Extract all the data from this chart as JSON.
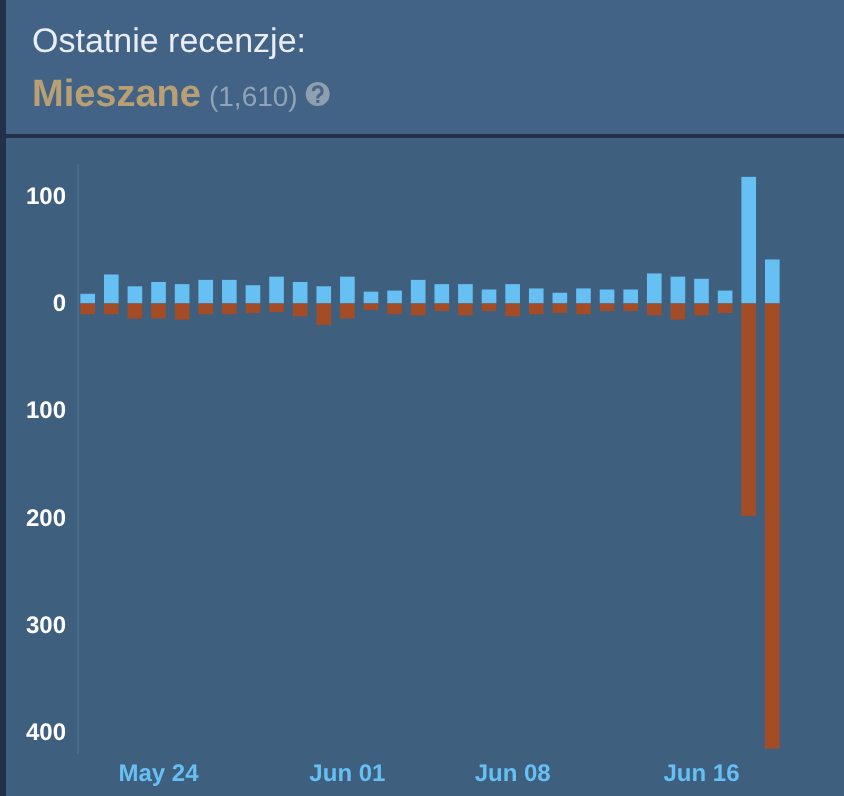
{
  "chart_data": {
    "type": "bar",
    "title": "Ostatnie recenzje:",
    "subtitle": "Mieszane",
    "annotations": [
      "(1,610)"
    ],
    "categories": [
      null,
      null,
      null,
      "May 24",
      null,
      null,
      null,
      null,
      null,
      null,
      null,
      "Jun 01",
      null,
      null,
      null,
      null,
      null,
      null,
      "Jun 08",
      null,
      null,
      null,
      null,
      null,
      null,
      null,
      "Jun 16",
      null,
      null,
      null
    ],
    "stacked": true,
    "series": [
      {
        "color": "#66c0f4",
        "values": [
          9,
          27,
          16,
          20,
          18,
          22,
          22,
          17,
          25,
          20,
          16,
          25,
          11,
          12,
          22,
          18,
          18,
          13,
          18,
          14,
          10,
          14,
          13,
          13,
          28,
          25,
          23,
          12,
          118,
          41
        ]
      },
      {
        "color": "#a34c25",
        "values": [
          -10,
          -10,
          -14,
          -14,
          -15,
          -10,
          -10,
          -9,
          -8,
          -12,
          -20,
          -14,
          -6,
          -10,
          -11,
          -7,
          -11,
          -7,
          -12,
          -10,
          -9,
          -10,
          -7,
          -7,
          -11,
          -15,
          -11,
          -9,
          -198,
          -415
        ]
      }
    ],
    "ylim": [
      -420,
      130
    ],
    "yticks": [
      100,
      0,
      {
        "value": -100,
        "label": "100"
      },
      {
        "value": -200,
        "label": "200"
      },
      {
        "value": -300,
        "label": "300"
      },
      {
        "value": -400,
        "label": "400"
      }
    ],
    "grid": false
  }
}
